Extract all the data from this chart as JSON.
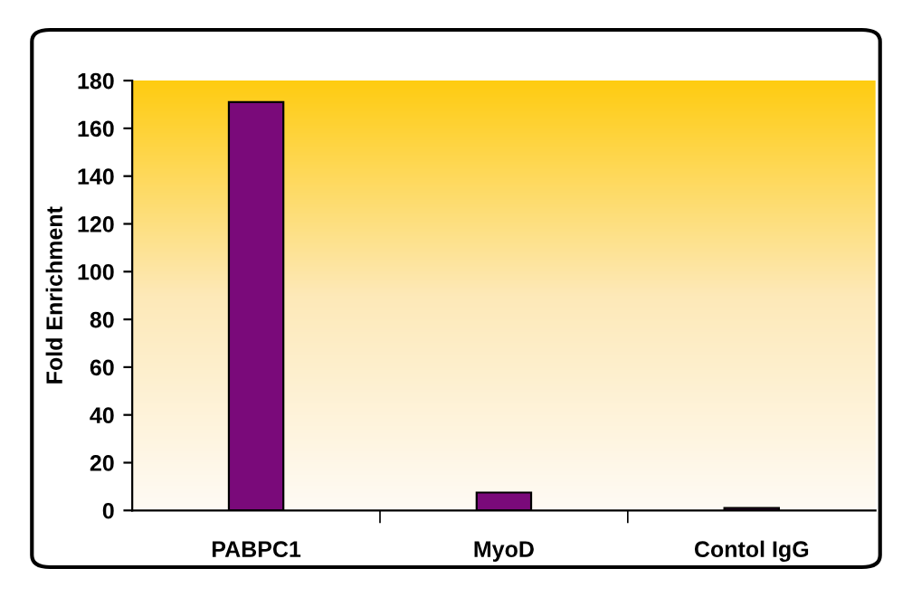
{
  "chart_data": {
    "type": "bar",
    "ylabel": "Fold Enrichment",
    "categories": [
      "PABPC1",
      "MyoD",
      "Contol IgG"
    ],
    "values": [
      171,
      7.5,
      1
    ],
    "color": "#7a0a7a",
    "ylim": [
      0,
      180
    ],
    "yticks": [
      0,
      20,
      40,
      60,
      80,
      100,
      120,
      140,
      160,
      180
    ],
    "grid": false,
    "legend": false
  }
}
